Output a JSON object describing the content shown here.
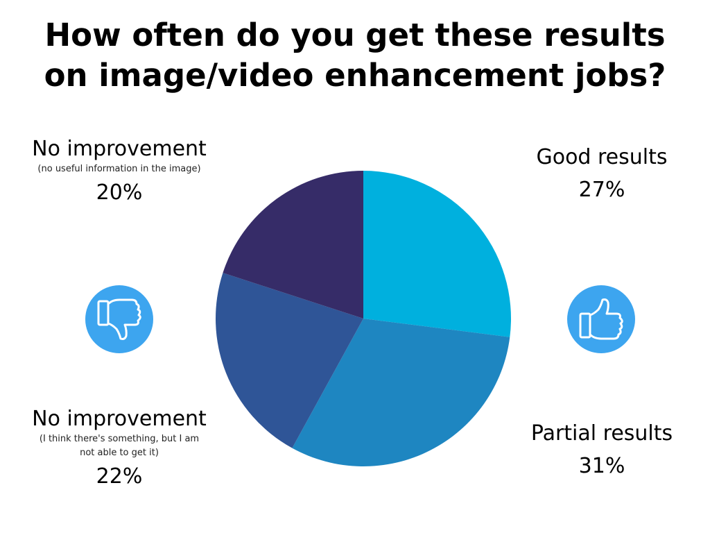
{
  "title_lines": [
    "How often do you get these results",
    "on image/video enhancement jobs?"
  ],
  "labels": {
    "no_improvement_1": {
      "name": "No improvement",
      "sub_lines": [
        "(no useful information in the image)"
      ],
      "pct": "20%"
    },
    "no_improvement_2": {
      "name": "No improvement",
      "sub_lines": [
        "(I think there's something, but I am",
        "not able to get it)"
      ],
      "pct": "22%"
    },
    "good": {
      "name": "Good results",
      "pct": "27%"
    },
    "partial": {
      "name": "Partial results",
      "pct": "31%"
    }
  },
  "icons": {
    "left": "thumbs-down-icon",
    "right": "thumbs-up-icon",
    "color": "#3DA5EF"
  },
  "chart_data": {
    "type": "pie",
    "start_angle_deg": 0,
    "direction": "clockwise",
    "slices": [
      {
        "label": "Good results",
        "value": 27,
        "color": "#00B0DE"
      },
      {
        "label": "Partial results",
        "value": 31,
        "color": "#1E86C1"
      },
      {
        "label": "No improvement (I think there's something, but I am not able to get it)",
        "value": 22,
        "color": "#2F5597"
      },
      {
        "label": "No improvement (no useful information in the image)",
        "value": 20,
        "color": "#362C68"
      }
    ]
  }
}
